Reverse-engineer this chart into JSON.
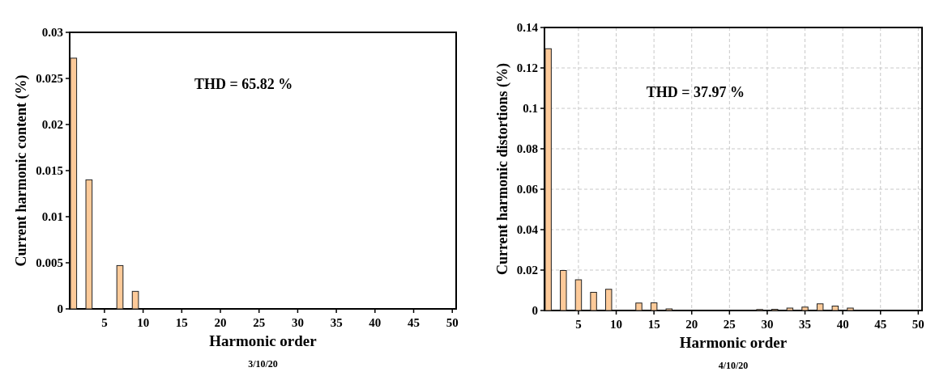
{
  "chart_data": [
    {
      "type": "bar",
      "xlabel": "Harmonic order",
      "ylabel": "Current harmonic content (%)",
      "x": [
        1,
        3,
        5,
        7,
        9,
        11,
        13,
        15,
        17,
        19,
        21,
        23,
        25,
        27,
        29,
        31,
        33,
        35,
        37,
        39,
        41,
        43,
        45,
        47,
        49
      ],
      "values": [
        0.0272,
        0.014,
        0,
        0.0047,
        0.0019,
        0,
        0,
        0,
        0,
        0,
        0,
        0,
        0,
        0,
        0,
        0,
        0,
        0,
        0,
        0,
        0,
        0,
        0,
        0,
        0
      ],
      "color": "#fdca99",
      "xlim": [
        0.5,
        50.5
      ],
      "xticks": [
        5,
        10,
        15,
        20,
        25,
        30,
        35,
        40,
        45,
        50
      ],
      "ylim": [
        0,
        0.03
      ],
      "yticks": [
        0,
        0.005,
        0.01,
        0.015,
        0.02,
        0.025,
        0.03
      ],
      "grid": false,
      "annotations": [
        "THD = 65.82 %",
        "3/10/20"
      ]
    },
    {
      "type": "bar",
      "xlabel": "Harmonic order",
      "ylabel": "Current harmonic distortions (%)",
      "x": [
        1,
        3,
        5,
        7,
        9,
        11,
        13,
        15,
        17,
        19,
        21,
        23,
        25,
        27,
        29,
        31,
        33,
        35,
        37,
        39,
        41,
        43,
        45,
        47,
        49
      ],
      "values": [
        0.1295,
        0.0198,
        0.0152,
        0.009,
        0.0105,
        0,
        0.0037,
        0.0038,
        0.0008,
        0,
        0,
        0,
        0,
        0,
        0.0005,
        0.0006,
        0.0012,
        0.0017,
        0.0033,
        0.0022,
        0.0012,
        0,
        0,
        0,
        0
      ],
      "color": "#fdca99",
      "xlim": [
        0.5,
        50.5
      ],
      "xticks": [
        5,
        10,
        15,
        20,
        25,
        30,
        35,
        40,
        45,
        50
      ],
      "ylim": [
        0,
        0.14
      ],
      "yticks": [
        0,
        0.02,
        0.04,
        0.06,
        0.08,
        0.1,
        0.12,
        0.14
      ],
      "grid": true,
      "annotations": [
        "THD = 37.97 %",
        "4/10/20"
      ]
    }
  ]
}
